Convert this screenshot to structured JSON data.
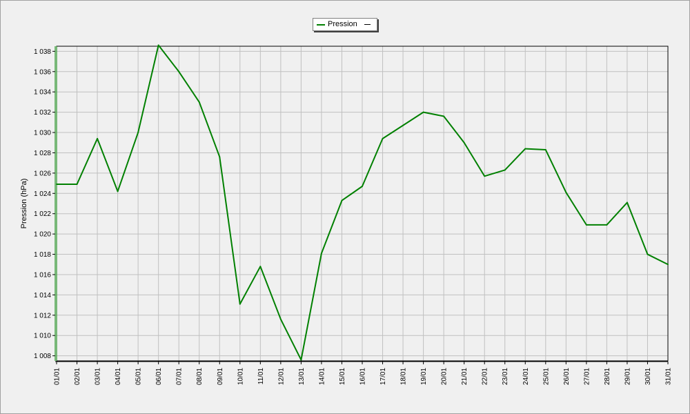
{
  "chart_data": {
    "type": "line",
    "title": "",
    "xlabel": "",
    "ylabel": "Pression (hPa)",
    "categories": [
      "01/01",
      "02/01",
      "03/01",
      "04/01",
      "05/01",
      "06/01",
      "07/01",
      "08/01",
      "09/01",
      "10/01",
      "11/01",
      "12/01",
      "13/01",
      "14/01",
      "15/01",
      "16/01",
      "17/01",
      "18/01",
      "19/01",
      "20/01",
      "21/01",
      "22/01",
      "23/01",
      "24/01",
      "25/01",
      "26/01",
      "27/01",
      "28/01",
      "29/01",
      "30/01",
      "31/01"
    ],
    "ylim": [
      1007.5,
      1038.5
    ],
    "yticks": [
      1008,
      1010,
      1012,
      1014,
      1016,
      1018,
      1020,
      1022,
      1024,
      1026,
      1028,
      1030,
      1032,
      1034,
      1036,
      1038
    ],
    "ytick_labels": [
      "1 008",
      "1 010",
      "1 012",
      "1 014",
      "1 016",
      "1 018",
      "1 020",
      "1 022",
      "1 024",
      "1 026",
      "1 028",
      "1 030",
      "1 032",
      "1 034",
      "1 036",
      "1 038"
    ],
    "grid": true,
    "legend_position": "top-center",
    "series": [
      {
        "name": "Pression",
        "color": "#008000",
        "values": [
          1024.9,
          1024.9,
          1029.4,
          1024.2,
          1030.0,
          1038.6,
          1036.0,
          1033.0,
          1027.6,
          1013.1,
          1016.8,
          1011.6,
          1007.6,
          1018.1,
          1023.3,
          1024.7,
          1029.4,
          1030.7,
          1032.0,
          1031.6,
          1029.0,
          1025.7,
          1026.3,
          1028.4,
          1028.3,
          1024.1,
          1020.9,
          1020.9,
          1023.1,
          1018.0,
          1017.0
        ]
      }
    ]
  },
  "legend": {
    "label": "Pression"
  }
}
